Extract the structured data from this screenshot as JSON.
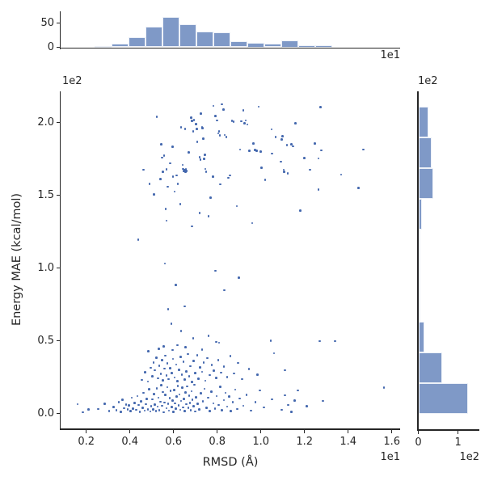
{
  "figure": {
    "background": "#ffffff",
    "text_color": "#262626",
    "spine_color": "#262626",
    "point_color": "#4468ae",
    "bar_fill": "#7f99c7",
    "bar_edge": "#edf1f8"
  },
  "chart_data": {
    "type": "scatter",
    "subtype": "jointplot_scatter_with_marginal_histograms",
    "scatter": {
      "xlabel": "RMSD (Å)",
      "ylabel": "Energy MAE (kcal/mol)",
      "x_offset_text": "1e1",
      "y_offset_text": "1e2",
      "xlim": [
        0.826,
        16.38
      ],
      "ylim": [
        -10.2,
        221.5
      ],
      "x_ticks": [
        {
          "v": 2,
          "label": "0.2"
        },
        {
          "v": 4,
          "label": "0.4"
        },
        {
          "v": 6,
          "label": "0.6"
        },
        {
          "v": 8,
          "label": "0.8"
        },
        {
          "v": 10,
          "label": "1.0"
        },
        {
          "v": 12,
          "label": "1.2"
        },
        {
          "v": 14,
          "label": "1.4"
        },
        {
          "v": 16,
          "label": "1.6"
        }
      ],
      "y_ticks": [
        {
          "v": 0,
          "label": "0.0"
        },
        {
          "v": 50,
          "label": "0.5"
        },
        {
          "v": 100,
          "label": "1.0"
        },
        {
          "v": 150,
          "label": "1.5"
        },
        {
          "v": 200,
          "label": "2.0"
        }
      ],
      "points": [
        [
          4.63,
          167.6
        ],
        [
          5.23,
          204.1
        ],
        [
          5.43,
          185.2
        ],
        [
          5.48,
          176.0
        ],
        [
          5.56,
          177.4
        ],
        [
          5.41,
          161.3
        ],
        [
          5.5,
          166.1
        ],
        [
          5.67,
          168.0
        ],
        [
          5.73,
          155.9
        ],
        [
          5.95,
          183.6
        ],
        [
          5.97,
          162.8
        ],
        [
          6.13,
          163.6
        ],
        [
          6.19,
          158.0
        ],
        [
          6.34,
          196.7
        ],
        [
          6.53,
          195.8
        ],
        [
          6.42,
          170.9
        ],
        [
          6.44,
          168.2
        ],
        [
          6.47,
          166.7
        ],
        [
          6.5,
          167.2
        ],
        [
          6.54,
          166.1
        ],
        [
          6.57,
          168.0
        ],
        [
          6.6,
          166.7
        ],
        [
          6.81,
          203.6
        ],
        [
          6.85,
          201.1
        ],
        [
          6.94,
          201.9
        ],
        [
          6.9,
          194.1
        ],
        [
          7.02,
          198.9
        ],
        [
          7.06,
          195.8
        ],
        [
          7.09,
          186.9
        ],
        [
          7.19,
          176.3
        ],
        [
          7.23,
          174.7
        ],
        [
          7.26,
          206.1
        ],
        [
          7.3,
          196.7
        ],
        [
          7.33,
          196.1
        ],
        [
          7.36,
          189.1
        ],
        [
          7.39,
          175.0
        ],
        [
          7.43,
          177.8
        ],
        [
          7.46,
          168.2
        ],
        [
          7.49,
          166.3
        ],
        [
          7.8,
          163.0
        ],
        [
          7.83,
          211.5
        ],
        [
          7.91,
          204.4
        ],
        [
          7.99,
          201.5
        ],
        [
          8.05,
          192.6
        ],
        [
          8.09,
          193.9
        ],
        [
          8.12,
          191.3
        ],
        [
          8.22,
          212.6
        ],
        [
          8.28,
          208.9
        ],
        [
          8.34,
          191.5
        ],
        [
          8.42,
          190.2
        ],
        [
          8.52,
          162.1
        ],
        [
          8.59,
          163.6
        ],
        [
          8.67,
          201.3
        ],
        [
          8.75,
          200.6
        ],
        [
          9.04,
          181.5
        ],
        [
          9.1,
          201.0
        ],
        [
          9.19,
          208.6
        ],
        [
          9.26,
          199.4
        ],
        [
          9.31,
          201.5
        ],
        [
          9.38,
          198.7
        ],
        [
          9.47,
          180.8
        ],
        [
          9.65,
          185.8
        ],
        [
          9.73,
          181.1
        ],
        [
          9.81,
          180.6
        ],
        [
          9.9,
          211.0
        ],
        [
          10.0,
          180.2
        ],
        [
          10.02,
          169.1
        ],
        [
          10.49,
          195.4
        ],
        [
          10.52,
          178.7
        ],
        [
          10.67,
          190.2
        ],
        [
          10.91,
          173.2
        ],
        [
          10.95,
          188.3
        ],
        [
          10.99,
          190.8
        ],
        [
          11.05,
          167.6
        ],
        [
          11.07,
          166.1
        ],
        [
          11.2,
          184.7
        ],
        [
          11.23,
          165.2
        ],
        [
          11.41,
          185.2
        ],
        [
          11.48,
          183.7
        ],
        [
          11.59,
          199.7
        ],
        [
          12.0,
          175.6
        ],
        [
          12.24,
          167.6
        ],
        [
          12.47,
          185.8
        ],
        [
          12.74,
          210.6
        ],
        [
          12.76,
          181.0
        ],
        [
          12.64,
          175.4
        ],
        [
          13.67,
          164.3
        ],
        [
          14.47,
          155.2
        ],
        [
          14.69,
          181.5
        ],
        [
          12.64,
          154.1
        ],
        [
          5.64,
          140.8
        ],
        [
          7.19,
          138.0
        ],
        [
          6.84,
          128.7
        ],
        [
          5.67,
          132.5
        ],
        [
          6.3,
          144.0
        ],
        [
          7.6,
          135.5
        ],
        [
          8.9,
          142.5
        ],
        [
          9.6,
          131.0
        ],
        [
          11.8,
          139.5
        ],
        [
          5.1,
          150.5
        ],
        [
          4.9,
          158.0
        ],
        [
          6.05,
          152.5
        ],
        [
          7.7,
          148.5
        ],
        [
          8.15,
          157.5
        ],
        [
          10.2,
          160.5
        ],
        [
          6.7,
          179.5
        ],
        [
          5.85,
          172.0
        ],
        [
          4.38,
          119.4
        ],
        [
          5.6,
          103.2
        ],
        [
          7.92,
          98.2
        ],
        [
          8.33,
          84.7
        ],
        [
          6.1,
          88.5
        ],
        [
          9.0,
          93.5
        ],
        [
          5.75,
          71.9
        ],
        [
          6.5,
          73.6
        ],
        [
          5.32,
          44.5
        ],
        [
          5.55,
          46.2
        ],
        [
          5.95,
          43.8
        ],
        [
          6.18,
          47.0
        ],
        [
          6.55,
          45.6
        ],
        [
          7.3,
          44.1
        ],
        [
          7.95,
          49.3
        ],
        [
          8.08,
          48.6
        ],
        [
          10.45,
          50.2
        ],
        [
          12.7,
          49.8
        ],
        [
          13.4,
          49.7
        ],
        [
          6.9,
          51.9
        ],
        [
          5.9,
          61.7
        ],
        [
          6.35,
          56.8
        ],
        [
          4.85,
          42.9
        ],
        [
          7.6,
          53.5
        ],
        [
          4.55,
          23.1
        ],
        [
          4.7,
          28.4
        ],
        [
          4.82,
          22.0
        ],
        [
          4.95,
          31.5
        ],
        [
          5.02,
          25.8
        ],
        [
          5.08,
          35.2
        ],
        [
          5.15,
          29.7
        ],
        [
          5.22,
          38.4
        ],
        [
          5.28,
          24.3
        ],
        [
          5.35,
          33.0
        ],
        [
          5.42,
          27.2
        ],
        [
          5.48,
          36.6
        ],
        [
          5.52,
          22.8
        ],
        [
          5.58,
          30.9
        ],
        [
          5.63,
          39.8
        ],
        [
          5.68,
          26.1
        ],
        [
          5.72,
          34.4
        ],
        [
          5.78,
          23.7
        ],
        [
          5.85,
          31.2
        ],
        [
          5.92,
          28.0
        ],
        [
          5.98,
          37.5
        ],
        [
          6.05,
          24.9
        ],
        [
          6.12,
          33.8
        ],
        [
          6.18,
          22.4
        ],
        [
          6.25,
          30.2
        ],
        [
          6.32,
          38.9
        ],
        [
          6.38,
          26.7
        ],
        [
          6.45,
          35.8
        ],
        [
          6.52,
          23.4
        ],
        [
          6.58,
          29.1
        ],
        [
          6.65,
          41.0
        ],
        [
          6.72,
          25.5
        ],
        [
          6.78,
          32.6
        ],
        [
          6.85,
          21.8
        ],
        [
          6.92,
          36.1
        ],
        [
          7.0,
          27.8
        ],
        [
          7.08,
          40.2
        ],
        [
          7.15,
          24.0
        ],
        [
          7.22,
          31.9
        ],
        [
          7.3,
          28.8
        ],
        [
          7.38,
          35.0
        ],
        [
          7.45,
          22.6
        ],
        [
          7.55,
          38.1
        ],
        [
          7.65,
          26.4
        ],
        [
          7.75,
          33.4
        ],
        [
          7.85,
          29.5
        ],
        [
          7.95,
          24.6
        ],
        [
          8.05,
          36.9
        ],
        [
          8.18,
          28.2
        ],
        [
          8.3,
          32.2
        ],
        [
          8.45,
          25.2
        ],
        [
          8.6,
          39.4
        ],
        [
          8.78,
          27.5
        ],
        [
          8.95,
          34.7
        ],
        [
          9.15,
          23.8
        ],
        [
          9.45,
          30.6
        ],
        [
          9.85,
          26.9
        ],
        [
          10.6,
          41.5
        ],
        [
          11.1,
          29.9
        ],
        [
          1.6,
          6.5
        ],
        [
          1.85,
          1.0
        ],
        [
          2.1,
          3.0
        ],
        [
          2.55,
          3.2
        ],
        [
          2.85,
          6.8
        ],
        [
          3.05,
          1.9
        ],
        [
          3.25,
          4.5
        ],
        [
          3.38,
          2.2
        ],
        [
          3.5,
          7.9
        ],
        [
          3.58,
          1.2
        ],
        [
          3.66,
          9.4
        ],
        [
          3.74,
          3.8
        ],
        [
          3.82,
          6.1
        ],
        [
          3.9,
          2.9
        ],
        [
          3.95,
          5.5
        ],
        [
          4.02,
          1.6
        ],
        [
          4.08,
          10.8
        ],
        [
          4.15,
          3.4
        ],
        [
          4.22,
          7.2
        ],
        [
          4.28,
          2.5
        ],
        [
          4.35,
          12.1
        ],
        [
          4.4,
          5.9
        ],
        [
          4.46,
          1.1
        ],
        [
          4.52,
          8.5
        ],
        [
          4.58,
          4.1
        ],
        [
          4.63,
          14.3
        ],
        [
          4.68,
          2.0
        ],
        [
          4.73,
          6.5
        ],
        [
          4.78,
          10.2
        ],
        [
          4.83,
          3.0
        ],
        [
          4.88,
          16.8
        ],
        [
          4.93,
          1.4
        ],
        [
          4.98,
          5.1
        ],
        [
          5.03,
          9.8
        ],
        [
          5.07,
          2.7
        ],
        [
          5.11,
          13.5
        ],
        [
          5.15,
          6.2
        ],
        [
          5.19,
          1.8
        ],
        [
          5.23,
          17.4
        ],
        [
          5.27,
          4.8
        ],
        [
          5.31,
          11.0
        ],
        [
          5.35,
          2.3
        ],
        [
          5.39,
          8.1
        ],
        [
          5.43,
          19.6
        ],
        [
          5.47,
          5.4
        ],
        [
          5.51,
          14.9
        ],
        [
          5.55,
          1.0
        ],
        [
          5.59,
          7.6
        ],
        [
          5.63,
          12.8
        ],
        [
          5.67,
          3.6
        ],
        [
          5.71,
          18.2
        ],
        [
          5.75,
          6.9
        ],
        [
          5.79,
          2.1
        ],
        [
          5.83,
          10.5
        ],
        [
          5.87,
          15.7
        ],
        [
          5.91,
          4.4
        ],
        [
          5.95,
          9.1
        ],
        [
          5.99,
          1.3
        ],
        [
          6.03,
          16.2
        ],
        [
          6.07,
          7.0
        ],
        [
          6.11,
          3.3
        ],
        [
          6.15,
          11.6
        ],
        [
          6.19,
          19.0
        ],
        [
          6.23,
          5.7
        ],
        [
          6.27,
          13.2
        ],
        [
          6.31,
          2.6
        ],
        [
          6.35,
          8.8
        ],
        [
          6.39,
          17.8
        ],
        [
          6.43,
          4.2
        ],
        [
          6.47,
          10.0
        ],
        [
          6.51,
          1.7
        ],
        [
          6.55,
          14.6
        ],
        [
          6.59,
          6.4
        ],
        [
          6.63,
          18.8
        ],
        [
          6.67,
          3.9
        ],
        [
          6.71,
          12.4
        ],
        [
          6.75,
          7.4
        ],
        [
          6.79,
          2.4
        ],
        [
          6.83,
          15.3
        ],
        [
          6.87,
          9.6
        ],
        [
          6.91,
          5.0
        ],
        [
          6.95,
          19.8
        ],
        [
          6.99,
          1.5
        ],
        [
          7.03,
          11.3
        ],
        [
          7.1,
          6.6
        ],
        [
          7.18,
          2.8
        ],
        [
          7.26,
          13.9
        ],
        [
          7.34,
          8.3
        ],
        [
          7.42,
          17.0
        ],
        [
          7.5,
          4.0
        ],
        [
          7.58,
          10.9
        ],
        [
          7.66,
          1.9
        ],
        [
          7.74,
          15.1
        ],
        [
          7.82,
          7.1
        ],
        [
          7.9,
          3.5
        ],
        [
          7.98,
          12.0
        ],
        [
          8.06,
          5.8
        ],
        [
          8.14,
          18.5
        ],
        [
          8.22,
          2.2
        ],
        [
          8.3,
          9.3
        ],
        [
          8.38,
          14.2
        ],
        [
          8.46,
          4.7
        ],
        [
          8.54,
          11.9
        ],
        [
          8.62,
          1.6
        ],
        [
          8.72,
          7.7
        ],
        [
          8.82,
          16.5
        ],
        [
          8.92,
          3.1
        ],
        [
          9.02,
          10.4
        ],
        [
          9.2,
          5.3
        ],
        [
          9.35,
          13.0
        ],
        [
          9.55,
          2.0
        ],
        [
          9.75,
          8.0
        ],
        [
          9.95,
          15.9
        ],
        [
          10.15,
          4.3
        ],
        [
          10.5,
          9.9
        ],
        [
          10.95,
          2.5
        ],
        [
          11.1,
          12.5
        ],
        [
          11.25,
          6.0
        ],
        [
          11.4,
          1.2
        ],
        [
          11.55,
          9.0
        ],
        [
          11.7,
          16.0
        ],
        [
          12.1,
          5.2
        ],
        [
          12.85,
          8.7
        ],
        [
          15.64,
          18.0
        ]
      ]
    },
    "top_histogram": {
      "axis": "RMSD marginal distribution",
      "bin_start": 2.39,
      "bin_width": 0.777,
      "counts": [
        3,
        8,
        21,
        43,
        62,
        48,
        33,
        31,
        13,
        10,
        8,
        15,
        5,
        5
      ],
      "ylim": [
        0,
        77.5
      ],
      "y_ticks": [
        {
          "v": 0,
          "label": "0"
        },
        {
          "v": 50,
          "label": "50"
        }
      ],
      "x_offset_text": "1e1"
    },
    "right_histogram": {
      "axis": "Energy MAE marginal distribution",
      "bin_start": 0,
      "bin_width": 21.1,
      "counts": [
        125,
        59,
        16,
        2,
        5,
        1,
        9,
        37,
        34,
        25
      ],
      "xlim": [
        0,
        152.5
      ],
      "x_ticks": [
        {
          "v": 0,
          "label": "0"
        },
        {
          "v": 100,
          "label": "1"
        }
      ],
      "x_offset_text": "1e2"
    }
  }
}
